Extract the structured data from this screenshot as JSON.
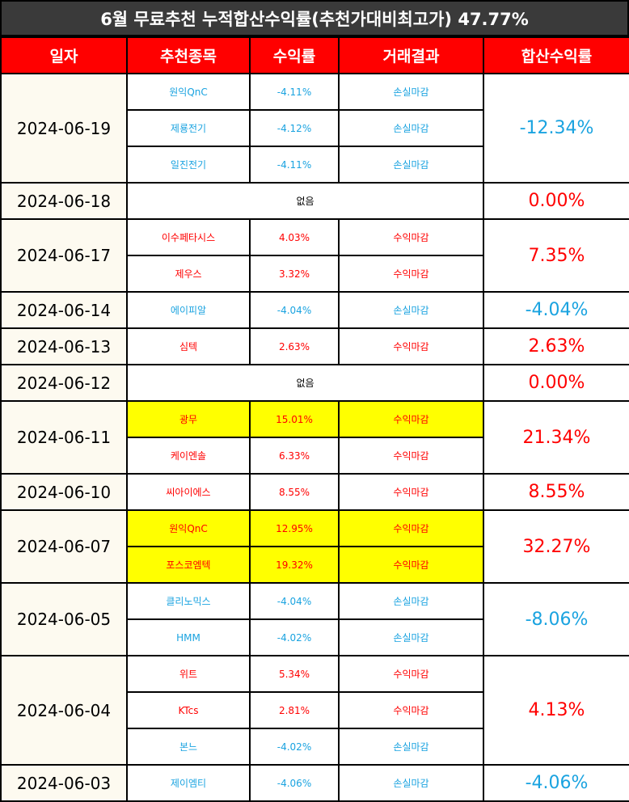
{
  "title": "6월 무료추천 누적합산수익률(추천가대비최고가) 47.77%",
  "headers": [
    "일자",
    "추천종목",
    "수익률",
    "거래결과",
    "합산수익률"
  ],
  "colors": {
    "profit": "#ff0000",
    "loss": "#1aa3e0",
    "header_bg": "#ff0000",
    "highlight": "#ffff00"
  },
  "groups": [
    {
      "date": "2024-06-19",
      "total": "-12.34%",
      "type": "loss",
      "rows": [
        {
          "stock": "원익QnC",
          "pct": "-4.11%",
          "result": "손실마감",
          "type": "loss"
        },
        {
          "stock": "제룡전기",
          "pct": "-4.12%",
          "result": "손실마감",
          "type": "loss"
        },
        {
          "stock": "일진전기",
          "pct": "-4.11%",
          "result": "손실마감",
          "type": "loss"
        }
      ]
    },
    {
      "date": "2024-06-18",
      "total": "0.00%",
      "type": "profit",
      "none": "없음",
      "rows": []
    },
    {
      "date": "2024-06-17",
      "total": "7.35%",
      "type": "profit",
      "rows": [
        {
          "stock": "이수페타시스",
          "pct": "4.03%",
          "result": "수익마감",
          "type": "profit"
        },
        {
          "stock": "제우스",
          "pct": "3.32%",
          "result": "수익마감",
          "type": "profit"
        }
      ]
    },
    {
      "date": "2024-06-14",
      "total": "-4.04%",
      "type": "loss",
      "rows": [
        {
          "stock": "에이피알",
          "pct": "-4.04%",
          "result": "손실마감",
          "type": "loss"
        }
      ]
    },
    {
      "date": "2024-06-13",
      "total": "2.63%",
      "type": "profit",
      "rows": [
        {
          "stock": "심텍",
          "pct": "2.63%",
          "result": "수익마감",
          "type": "profit"
        }
      ]
    },
    {
      "date": "2024-06-12",
      "total": "0.00%",
      "type": "profit",
      "none": "없음",
      "rows": []
    },
    {
      "date": "2024-06-11",
      "total": "21.34%",
      "type": "profit",
      "rows": [
        {
          "stock": "광무",
          "pct": "15.01%",
          "result": "수익마감",
          "type": "profit",
          "highlight": true
        },
        {
          "stock": "케이엔솔",
          "pct": "6.33%",
          "result": "수익마감",
          "type": "profit"
        }
      ]
    },
    {
      "date": "2024-06-10",
      "total": "8.55%",
      "type": "profit",
      "rows": [
        {
          "stock": "씨아이에스",
          "pct": "8.55%",
          "result": "수익마감",
          "type": "profit"
        }
      ]
    },
    {
      "date": "2024-06-07",
      "total": "32.27%",
      "type": "profit",
      "rows": [
        {
          "stock": "원익QnC",
          "pct": "12.95%",
          "result": "수익마감",
          "type": "profit",
          "highlight": true
        },
        {
          "stock": "포스코엠텍",
          "pct": "19.32%",
          "result": "수익마감",
          "type": "profit",
          "highlight": true
        }
      ]
    },
    {
      "date": "2024-06-05",
      "total": "-8.06%",
      "type": "loss",
      "rows": [
        {
          "stock": "클리노믹스",
          "pct": "-4.04%",
          "result": "손실마감",
          "type": "loss"
        },
        {
          "stock": "HMM",
          "pct": "-4.02%",
          "result": "손실마감",
          "type": "loss"
        }
      ]
    },
    {
      "date": "2024-06-04",
      "total": "4.13%",
      "type": "profit",
      "rows": [
        {
          "stock": "위트",
          "pct": "5.34%",
          "result": "수익마감",
          "type": "profit"
        },
        {
          "stock": "KTcs",
          "pct": "2.81%",
          "result": "수익마감",
          "type": "profit"
        },
        {
          "stock": "본느",
          "pct": "-4.02%",
          "result": "손실마감",
          "type": "loss"
        }
      ]
    },
    {
      "date": "2024-06-03",
      "total": "-4.06%",
      "type": "loss",
      "rows": [
        {
          "stock": "제이엠티",
          "pct": "-4.06%",
          "result": "손실마감",
          "type": "loss"
        }
      ]
    }
  ]
}
